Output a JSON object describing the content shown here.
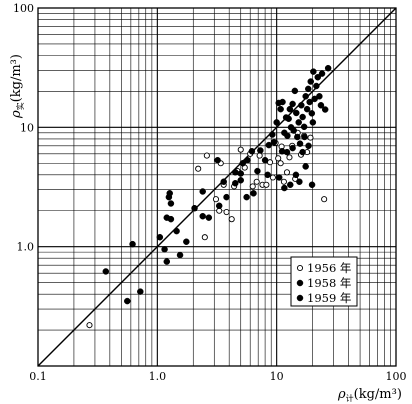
{
  "chart_data": {
    "type": "scatter",
    "title": "",
    "x_scale": "log",
    "y_scale": "log",
    "xlim": [
      0.1,
      100
    ],
    "ylim": [
      0.1,
      100
    ],
    "grid": true,
    "legend_position": "lower-right, inside plot",
    "xlabel": {
      "symbol": "ρ",
      "subscript": "计",
      "unit": "(kg/m³)"
    },
    "ylabel": {
      "symbol": "ρ",
      "subscript": "实",
      "unit": "(kg/m³)"
    },
    "x_tick_labels": [
      {
        "value": 0.1,
        "label": "0.1"
      },
      {
        "value": 1,
        "label": "1.0"
      },
      {
        "value": 10,
        "label": "10"
      },
      {
        "value": 100,
        "label": "100"
      }
    ],
    "y_tick_labels": [
      {
        "value": 1,
        "label": "1.0"
      },
      {
        "value": 10,
        "label": "10"
      },
      {
        "value": 100,
        "label": "100"
      }
    ],
    "reference_line": {
      "description": "y = x",
      "from": [
        0.1,
        0.1
      ],
      "to": [
        100,
        100
      ]
    },
    "series": [
      {
        "name": "1956 年",
        "marker": "open-circle",
        "points": [
          [
            0.27,
            0.22
          ],
          [
            2.5,
            1.2
          ],
          [
            3.1,
            2.5
          ],
          [
            3.3,
            2.0
          ],
          [
            3.6,
            3.3
          ],
          [
            3.8,
            1.95
          ],
          [
            4.2,
            1.7
          ],
          [
            4.4,
            3.2
          ],
          [
            4.7,
            4.3
          ],
          [
            5.0,
            6.5
          ],
          [
            5.4,
            4.6
          ],
          [
            6.3,
            3.2
          ],
          [
            6.8,
            3.5
          ],
          [
            7.2,
            5.8
          ],
          [
            7.6,
            3.3
          ],
          [
            8.2,
            3.3
          ],
          [
            8.8,
            5.1
          ],
          [
            9.3,
            3.8
          ],
          [
            9.8,
            7.4
          ],
          [
            10.3,
            5.5
          ],
          [
            10.8,
            5.0
          ],
          [
            11.5,
            3.5
          ],
          [
            12.2,
            4.2
          ],
          [
            12.8,
            5.6
          ],
          [
            13.5,
            7.0
          ],
          [
            14.3,
            3.7
          ],
          [
            15.0,
            9.0
          ],
          [
            16.0,
            5.9
          ],
          [
            17.0,
            8.5
          ],
          [
            18.0,
            6.2
          ],
          [
            19.2,
            8.2
          ],
          [
            25.0,
            2.5
          ],
          [
            2.2,
            4.5
          ],
          [
            2.6,
            5.8
          ],
          [
            3.4,
            5.0
          ],
          [
            6.0,
            6.0
          ],
          [
            11.0,
            6.9
          ]
        ]
      },
      {
        "name": "1958 年",
        "marker": "filled-circle",
        "points": [
          [
            0.37,
            0.62
          ],
          [
            0.56,
            0.35
          ],
          [
            0.62,
            1.05
          ],
          [
            0.72,
            0.42
          ],
          [
            1.15,
            0.95
          ],
          [
            1.2,
            0.75
          ],
          [
            1.3,
            1.7
          ],
          [
            1.45,
            1.35
          ],
          [
            1.55,
            0.85
          ],
          [
            1.75,
            1.1
          ],
          [
            2.05,
            2.1
          ],
          [
            2.4,
            1.8
          ],
          [
            2.7,
            1.75
          ],
          [
            3.3,
            2.2
          ],
          [
            3.8,
            2.6
          ],
          [
            4.5,
            3.4
          ],
          [
            5.0,
            3.6
          ],
          [
            5.6,
            2.6
          ],
          [
            6.4,
            2.8
          ],
          [
            8.4,
            4.0
          ],
          [
            10.5,
            3.8
          ],
          [
            11.6,
            3.1
          ],
          [
            13.0,
            3.3
          ],
          [
            14.5,
            4.0
          ],
          [
            15.5,
            3.5
          ],
          [
            17.5,
            4.7
          ],
          [
            19.8,
            3.3
          ],
          [
            16.5,
            6.2
          ],
          [
            13.6,
            6.7
          ],
          [
            12.2,
            6.2
          ]
        ]
      },
      {
        "name": "1959 年",
        "marker": "filled-circle",
        "points": [
          [
            1.05,
            1.2
          ],
          [
            1.2,
            1.75
          ],
          [
            1.25,
            2.6
          ],
          [
            1.27,
            2.8
          ],
          [
            1.3,
            2.3
          ],
          [
            2.4,
            2.9
          ],
          [
            3.2,
            5.3
          ],
          [
            3.6,
            3.5
          ],
          [
            4.5,
            4.2
          ],
          [
            5.0,
            4.1
          ],
          [
            5.2,
            5.0
          ],
          [
            5.7,
            5.3
          ],
          [
            6.2,
            6.3
          ],
          [
            6.9,
            4.3
          ],
          [
            7.3,
            6.4
          ],
          [
            8.0,
            5.3
          ],
          [
            8.6,
            7.1
          ],
          [
            9.2,
            8.7
          ],
          [
            10.0,
            11.0
          ],
          [
            10.4,
            16.0
          ],
          [
            10.8,
            14.2
          ],
          [
            11.2,
            16.3
          ],
          [
            11.6,
            9.0
          ],
          [
            12.0,
            12.1
          ],
          [
            12.3,
            8.5
          ],
          [
            12.6,
            11.8
          ],
          [
            12.9,
            14.2
          ],
          [
            13.2,
            10.0
          ],
          [
            13.6,
            15.7
          ],
          [
            13.9,
            9.4
          ],
          [
            14.2,
            20.2
          ],
          [
            14.6,
            13.2
          ],
          [
            14.9,
            8.3
          ],
          [
            15.3,
            11.0
          ],
          [
            15.7,
            7.3
          ],
          [
            16.1,
            15.3
          ],
          [
            16.5,
            12.2
          ],
          [
            17.0,
            10.1
          ],
          [
            17.5,
            18.2
          ],
          [
            18.0,
            14.2
          ],
          [
            18.4,
            21.0
          ],
          [
            18.9,
            16.3
          ],
          [
            19.3,
            24.2
          ],
          [
            19.7,
            13.1
          ],
          [
            20.3,
            29.3
          ],
          [
            20.8,
            17.3
          ],
          [
            21.5,
            22.2
          ],
          [
            22.1,
            26.3
          ],
          [
            22.8,
            18.2
          ],
          [
            23.5,
            15.3
          ],
          [
            24.0,
            28.2
          ],
          [
            25.5,
            14.1
          ],
          [
            27.0,
            31.3
          ],
          [
            20.1,
            11.0
          ],
          [
            17.1,
            8.3
          ],
          [
            11.1,
            6.3
          ],
          [
            9.5,
            7.5
          ],
          [
            18.5,
            7.0
          ]
        ]
      }
    ]
  }
}
